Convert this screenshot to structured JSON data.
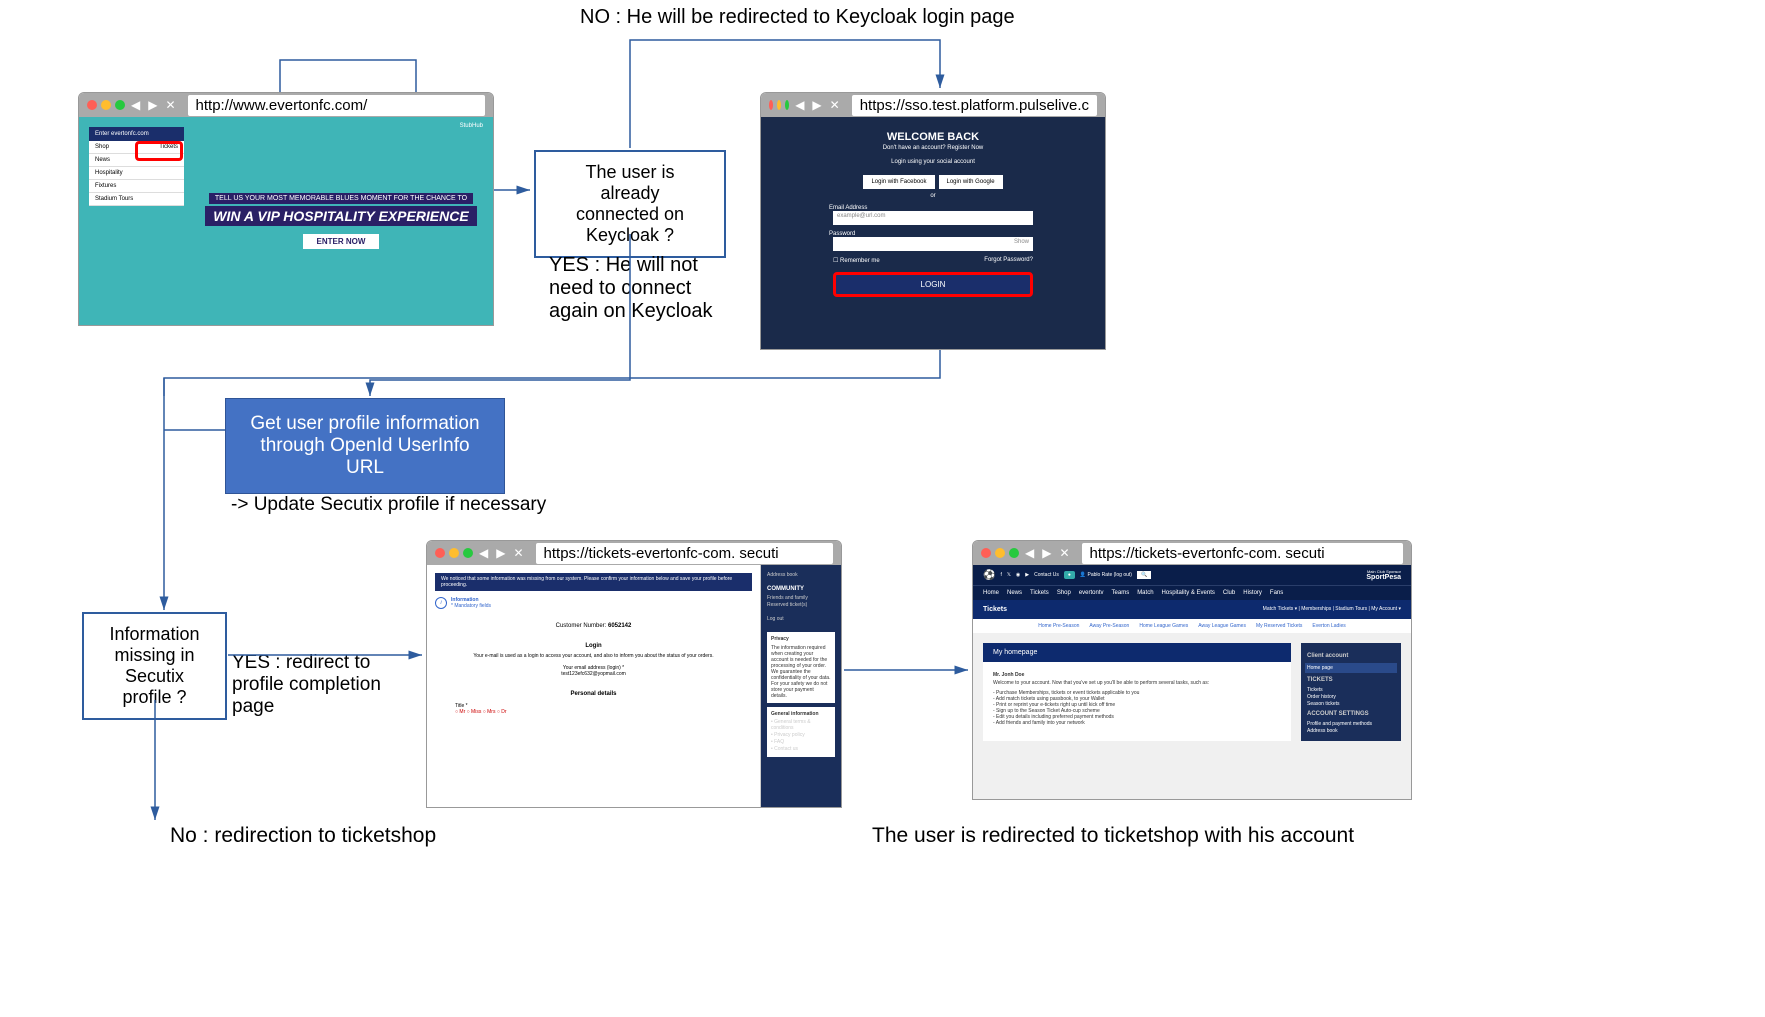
{
  "labels": {
    "no_redirect": "NO : He will be redirected to Keycloak login page",
    "yes_no_connect": "YES : He will not\nneed to connect\nagain on Keycloak",
    "update_secutix": "-> Update Secutix profile if necessary",
    "yes_redirect_profile": "YES : redirect to\nprofile completion\npage",
    "no_redirect_ticketshop": "No : redirection to ticketshop",
    "final_caption": "The user is redirected to ticketshop with his account"
  },
  "decision1": "The user is already\nconnected on\nKeycloak ?",
  "info_box": "Get user profile information\nthrough OpenId UserInfo\nURL",
  "decision2": "Information\nmissing in\nSecutix profile ?",
  "browser1": {
    "url": "http://www.evertonfc.com/",
    "menu_head": "Enter evertonfc.com",
    "menu_items": [
      [
        "Shop",
        "Tickets"
      ],
      [
        "News",
        ""
      ],
      [
        "Hospitality",
        ""
      ],
      [
        "Fixtures",
        ""
      ],
      [
        "Stadium Tours",
        ""
      ]
    ],
    "banner_top": "TELL US YOUR MOST MEMORABLE BLUES MOMENT FOR THE CHANCE TO",
    "banner_title": "WIN A VIP HOSPITALITY EXPERIENCE",
    "enter": "ENTER NOW",
    "stub": "StubHub"
  },
  "browser2": {
    "url": "https://sso.test.platform.pulselive.c",
    "title": "WELCOME BACK",
    "sub": "Don't have an account? Register Now",
    "social_title": "Login using your social account",
    "fb": "Login with Facebook",
    "google": "Login with Google",
    "or": "or",
    "email_label": "Email Address",
    "email_ph": "example@url.com",
    "pw_label": "Password",
    "show": "Show",
    "remember": "Remember me",
    "forgot": "Forgot Password?",
    "login": "LOGIN"
  },
  "browser3": {
    "url": "https://tickets-evertonfc-com. secuti",
    "notice": "We noticed that some information was missing from our system. Please confirm your information below and save your profile before proceeding.",
    "info": "Information",
    "mandatory": "* Mandatory fields",
    "custnum_label": "Customer Number:",
    "custnum": "6052142",
    "login_h": "Login",
    "login_desc": "Your e-mail is used as a login to access your account, and also to inform you about the status of your orders.",
    "email_label": "Your email address (login) *",
    "email": "test123efc632@yopmail.com",
    "personal": "Personal details",
    "title": "Title *",
    "title_opts": "○ Mr ○ Miss ○ Mrs ○ Dr",
    "side_addr": "Address book",
    "side_comm": "COMMUNITY",
    "side_ff": "Friends and family",
    "side_res": "Reserved ticket(s)",
    "side_logout": "Log out",
    "priv_h": "Privacy",
    "priv_txt": "The information required when creating your account is needed for the processing of your order. We guarantee the confidentiality of your data. For your safety we do not store your payment details.",
    "gen_h": "General information",
    "gen_items": [
      "General terms & conditions",
      "Privacy policy",
      "FAQ",
      "Contact us"
    ]
  },
  "browser4": {
    "url": "https://tickets-evertonfc-com. secuti",
    "contact": "Contact Us",
    "user": "Pablo Rate (log out)",
    "sponsor_lbl": "Main Club Sponsor",
    "sponsor": "SportPesa",
    "nav": [
      "Home",
      "News",
      "Tickets",
      "Shop",
      "evertontv",
      "Teams",
      "Match",
      "Hospitality & Events",
      "Club",
      "History",
      "Fans"
    ],
    "tickets": "Tickets",
    "subnav_right": [
      "Match Tickets ▾",
      "Memberships",
      "Stadium Tours",
      "My Account ▾"
    ],
    "subnav": [
      "Home Pre-Season",
      "Away Pre-Season",
      "Home League Games",
      "Away League Games",
      "My Reserved Tickets",
      "Everton Ladies"
    ],
    "homepage": "My homepage",
    "user_name": "Mr. Jonh Doe",
    "welcome": "Welcome to your account. Now that you've set up you'll be able to perform several tasks, such as:",
    "bullets": [
      "- Purchase Memberships, tickets or event tickets applicable to you",
      "- Add match tickets using passbook, to your Wallet",
      "- Print or reprint your e-tickets right up until kick off time",
      "- Sign up to the Season Ticket Auto-cup scheme",
      "- Edit you details including preferred payment methods",
      "- Add friends and family into your network"
    ],
    "side_client": "Client account",
    "side_home": "Home page",
    "side_tix_h": "TICKETS",
    "side_tix": [
      "Tickets",
      "Order history",
      "Season tickets"
    ],
    "side_acc_h": "ACCOUNT SETTINGS",
    "side_acc": [
      "Profile and payment methods",
      "Address book"
    ]
  },
  "colors": {
    "box_border": "#2e5c9e",
    "info_bg": "#4472c4",
    "arrow": "#2e5c9e",
    "highlight": "#ff0000"
  }
}
